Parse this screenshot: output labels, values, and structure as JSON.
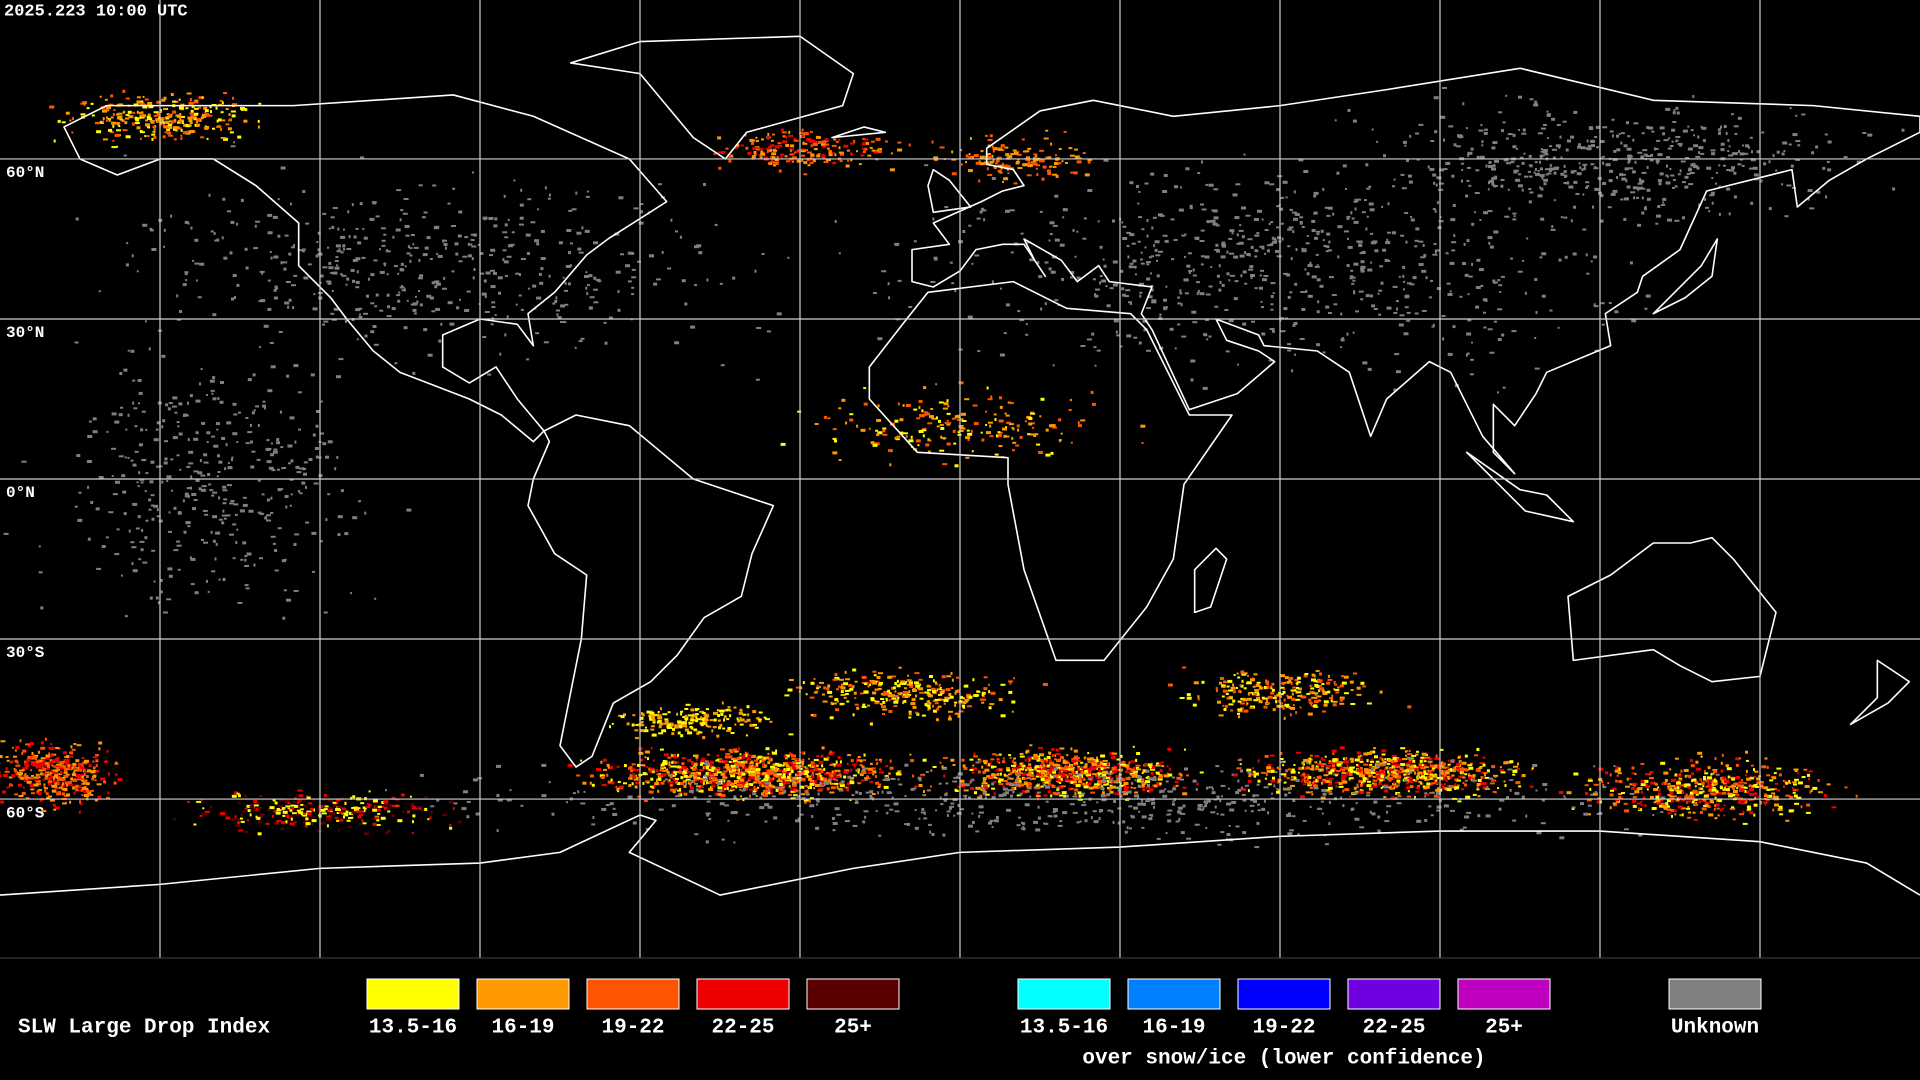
{
  "timestamp": "2025.223 10:00 UTC",
  "latitude_labels": [
    "60°N",
    "30°N",
    "0°N",
    "30°S",
    "60°S"
  ],
  "legend": {
    "title": "SLW Large Drop Index",
    "liquid": [
      {
        "label": "13.5-16",
        "color": "#ffff00"
      },
      {
        "label": "16-19",
        "color": "#ff9900"
      },
      {
        "label": "19-22",
        "color": "#ff5500"
      },
      {
        "label": "22-25",
        "color": "#ee0000"
      },
      {
        "label": "25+",
        "color": "#5a0000"
      }
    ],
    "snow_ice": [
      {
        "label": "13.5-16",
        "color": "#00ffff"
      },
      {
        "label": "16-19",
        "color": "#0080ff"
      },
      {
        "label": "19-22",
        "color": "#0000ff"
      },
      {
        "label": "22-25",
        "color": "#7000e0"
      },
      {
        "label": "25+",
        "color": "#c000c0"
      }
    ],
    "snow_ice_caption": "over snow/ice (lower confidence)",
    "unknown": {
      "label": "Unknown",
      "color": "#808080"
    }
  }
}
